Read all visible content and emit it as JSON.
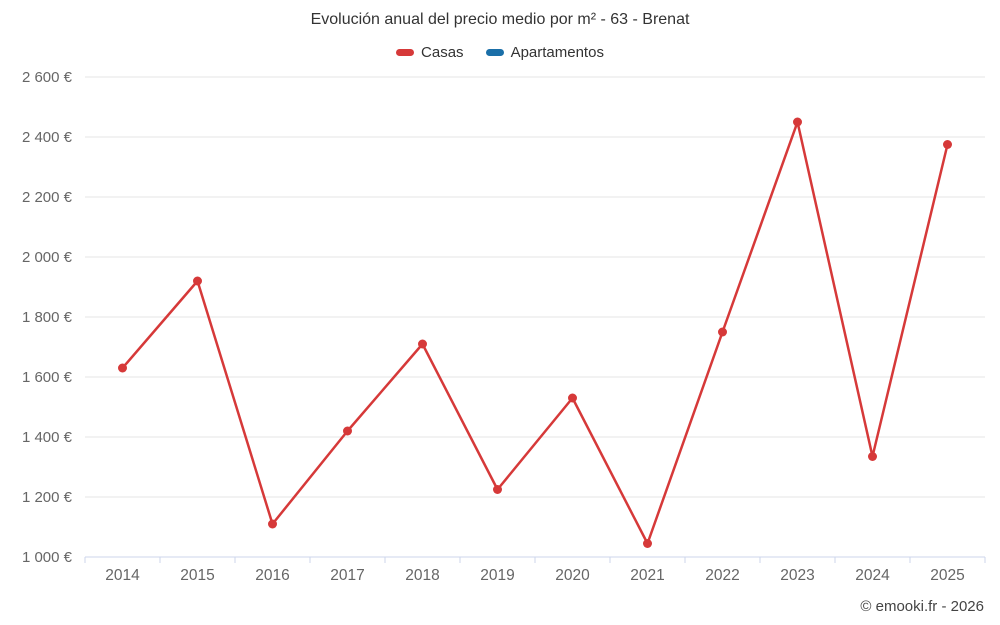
{
  "title": "Evolución anual del precio medio por m² - 63 - Brenat",
  "credits": "© emooki.fr - 2026",
  "legend": {
    "items": [
      {
        "label": "Casas",
        "color": "#d63939"
      },
      {
        "label": "Apartamentos",
        "color": "#1a6fa8"
      }
    ]
  },
  "colors": {
    "grid": "#e6e6e6",
    "axis_line": "#ccd6eb",
    "tick": "#ccd6eb",
    "axis_label": "#666666",
    "title_text": "#333333"
  },
  "chart_data": {
    "type": "line",
    "title": "Evolución anual del precio medio por m² - 63 - Brenat",
    "categories": [
      "2014",
      "2015",
      "2016",
      "2017",
      "2018",
      "2019",
      "2020",
      "2021",
      "2022",
      "2023",
      "2024",
      "2025"
    ],
    "series": [
      {
        "name": "Casas",
        "color": "#d63939",
        "values": [
          1630,
          1920,
          1110,
          1420,
          1710,
          1225,
          1530,
          1045,
          1750,
          2450,
          1335,
          2375
        ]
      },
      {
        "name": "Apartamentos",
        "color": "#1a6fa8",
        "values": []
      }
    ],
    "xlabel": "",
    "ylabel": "",
    "ylim": [
      1000,
      2600
    ],
    "ytick_step": 200,
    "value_suffix": " €",
    "grid": true,
    "legend_position": "top"
  }
}
